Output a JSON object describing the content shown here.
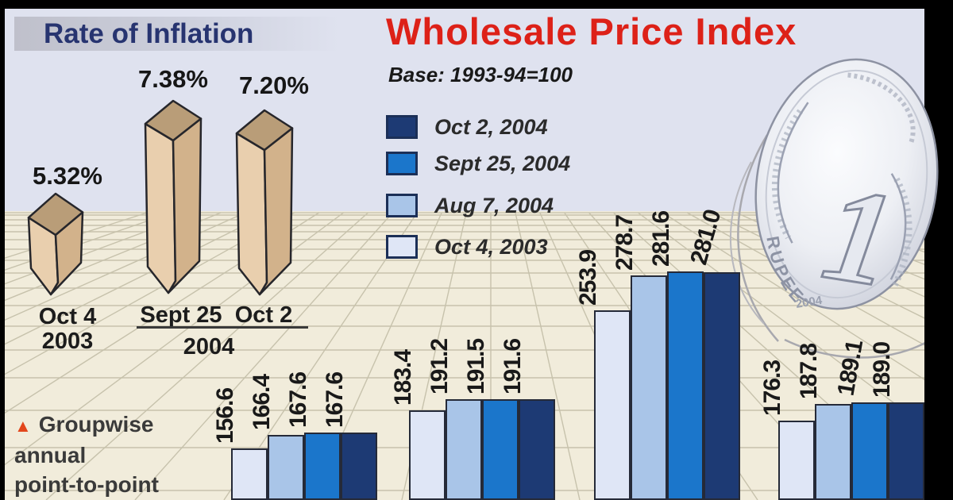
{
  "palette": {
    "title_red": "#dd2118",
    "title_navy": "#273470",
    "sky": "#dfe2ef",
    "floor": "#f1ecdb",
    "grid_line": "#c7c2ac",
    "obelisk_tan": "#e9cfae",
    "footnote_marker_color": "#e2461b"
  },
  "rate_panel": {
    "title": "Rate of Inflation",
    "bars": [
      {
        "pct": "5.32%",
        "date_line1": "Oct 4",
        "date_line2": "2003"
      },
      {
        "pct": "7.38%",
        "date": "Sept 25"
      },
      {
        "pct": "7.20%",
        "date": "Oct 2"
      }
    ],
    "year_group": "2004"
  },
  "wpi_panel": {
    "title": "Wholesale Price Index",
    "base": "Base: 1993-94=100",
    "legend": [
      {
        "label": "Oct 2, 2004",
        "color": "#1d3a74"
      },
      {
        "label": "Sept 25, 2004",
        "color": "#1b76cb"
      },
      {
        "label": "Aug 7, 2004",
        "color": "#a9c5e8"
      },
      {
        "label": "Oct 4, 2003",
        "color": "#dfe6f6"
      }
    ]
  },
  "footnote": {
    "marker": "▲",
    "lines": [
      "Groupwise",
      "annual",
      "point-to-point"
    ]
  },
  "coin": {
    "numeral": "1",
    "word": "RUPEE",
    "year": "2004"
  },
  "chart_data": [
    {
      "type": "bar",
      "title": "Wholesale Price Index",
      "subtitle": "Base: 1993-94=100",
      "note": "Groupwise annual point-to-point",
      "groups": 4,
      "categories_visible": false,
      "value_labels_shown": true,
      "baseline_cut_by_image_edge": true,
      "series": [
        {
          "name": "Oct 4, 2003",
          "color": "#dfe6f6",
          "values": [
            156.6,
            183.4,
            253.9,
            176.3
          ]
        },
        {
          "name": "Aug 7, 2004",
          "color": "#a9c5e8",
          "values": [
            166.4,
            191.2,
            278.7,
            187.8
          ]
        },
        {
          "name": "Sept 25, 2004",
          "color": "#1b76cb",
          "values": [
            167.6,
            191.5,
            281.6,
            189.1
          ]
        },
        {
          "name": "Oct 2, 2004",
          "color": "#1d3a74",
          "values": [
            167.6,
            191.6,
            281.0,
            189.0
          ]
        }
      ]
    },
    {
      "type": "bar",
      "title": "Rate of Inflation",
      "style": "3d-obelisk",
      "unit": "%",
      "categories": [
        "Oct 4 2003",
        "Sept 25 2004",
        "Oct 2 2004"
      ],
      "values": [
        5.32,
        7.38,
        7.2
      ]
    }
  ]
}
